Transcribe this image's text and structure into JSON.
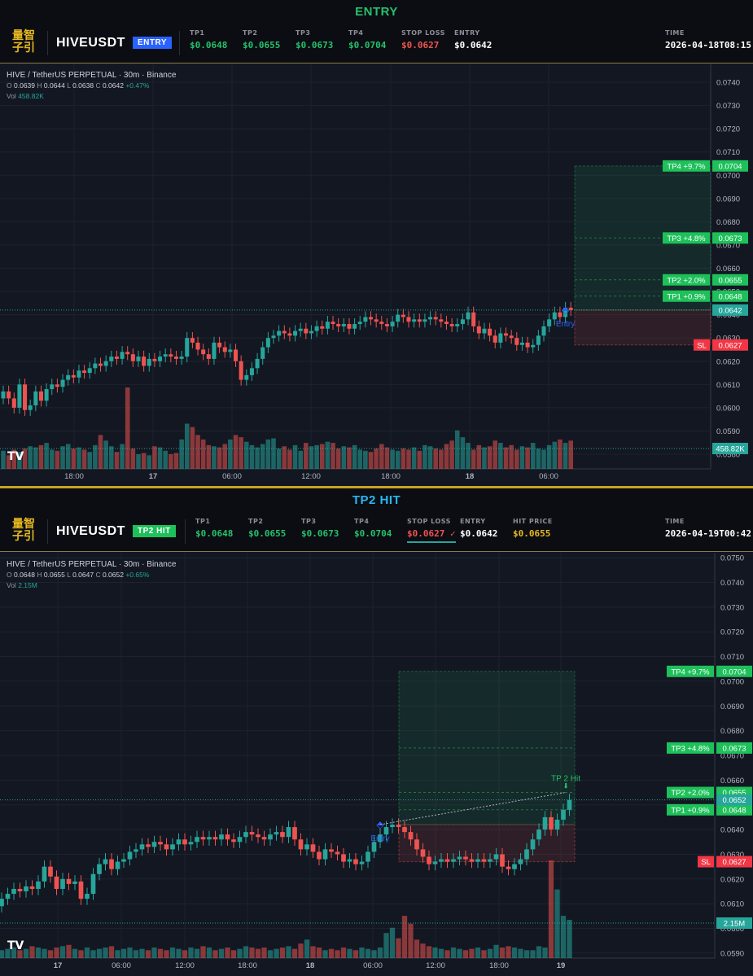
{
  "panels": [
    {
      "banner": "ENTRY",
      "banner_color": "#26c06b",
      "symbol": "HIVEUSDT",
      "badge": "ENTRY",
      "badge_color": "#2962ff",
      "logo": [
        "量智",
        "子引"
      ],
      "fields": [
        {
          "label": "TP1",
          "value": "$0.0648",
          "color": "#26c06b"
        },
        {
          "label": "TP2",
          "value": "$0.0655",
          "color": "#26c06b"
        },
        {
          "label": "TP3",
          "value": "$0.0673",
          "color": "#26c06b"
        },
        {
          "label": "TP4",
          "value": "$0.0704",
          "color": "#26c06b"
        },
        {
          "label": "STOP LOSS",
          "value": "$0.0627",
          "color": "#ef5350"
        },
        {
          "label": "ENTRY",
          "value": "$0.0642",
          "color": "#ffffff"
        }
      ],
      "time_label": "TIME",
      "time_value": "2026-04-18T08:15",
      "legend": {
        "title": "HIVE / TetherUS PERPETUAL · 30m · Binance",
        "o_label": "O",
        "o": "0.0639",
        "h_label": "H",
        "h": "0.0644",
        "l_label": "L",
        "l": "0.0638",
        "c_label": "C",
        "c": "0.0642",
        "chg": "+0.47%",
        "vol_label": "Vol",
        "vol": "458.82K"
      },
      "chart_data": {
        "type": "candlestick",
        "timeframe": "30m",
        "y_ticks": [
          "0.0580",
          "0.0590",
          "0.0600",
          "0.0610",
          "0.0620",
          "0.0630",
          "0.0640",
          "0.0650",
          "0.0660",
          "0.0670",
          "0.0680",
          "0.0690",
          "0.0700",
          "0.0710",
          "0.0720",
          "0.0730",
          "0.0740"
        ],
        "ylim": [
          0.0578,
          0.0746
        ],
        "x_ticks": [
          "18:00",
          "17",
          "06:00",
          "12:00",
          "18:00",
          "18",
          "06:00"
        ],
        "x_tick_bold": [
          false,
          true,
          false,
          false,
          false,
          true,
          false
        ],
        "closes": [
          0.0607,
          0.0604,
          0.06,
          0.061,
          0.0599,
          0.0601,
          0.0607,
          0.0603,
          0.0608,
          0.061,
          0.0609,
          0.0612,
          0.0614,
          0.0613,
          0.0616,
          0.0615,
          0.0617,
          0.0619,
          0.0618,
          0.062,
          0.0622,
          0.0621,
          0.0624,
          0.0623,
          0.062,
          0.0622,
          0.0618,
          0.0621,
          0.062,
          0.0622,
          0.0623,
          0.0622,
          0.0621,
          0.0622,
          0.063,
          0.0628,
          0.0625,
          0.0623,
          0.0621,
          0.0628,
          0.0626,
          0.0624,
          0.0625,
          0.062,
          0.0612,
          0.0614,
          0.0617,
          0.0621,
          0.0626,
          0.063,
          0.0631,
          0.0633,
          0.0632,
          0.0631,
          0.0633,
          0.0634,
          0.0632,
          0.0633,
          0.0635,
          0.0634,
          0.0637,
          0.0636,
          0.0635,
          0.0636,
          0.0634,
          0.0636,
          0.0637,
          0.0639,
          0.0638,
          0.0637,
          0.0636,
          0.0635,
          0.0637,
          0.064,
          0.0639,
          0.0637,
          0.0638,
          0.0637,
          0.0638,
          0.0639,
          0.0638,
          0.0637,
          0.0636,
          0.0635,
          0.0636,
          0.0638,
          0.0641,
          0.0635,
          0.0632,
          0.0634,
          0.0631,
          0.0628,
          0.0632,
          0.0631,
          0.063,
          0.0627,
          0.0628,
          0.0626,
          0.0627,
          0.0631,
          0.0635,
          0.0638,
          0.0641,
          0.0639,
          0.0643,
          0.0642
        ],
        "volumes": [
          160,
          120,
          170,
          150,
          180,
          200,
          190,
          210,
          230,
          170,
          160,
          200,
          220,
          180,
          190,
          170,
          150,
          210,
          300,
          250,
          200,
          150,
          220,
          720,
          180,
          130,
          140,
          120,
          200,
          190,
          160,
          130,
          140,
          260,
          400,
          370,
          300,
          260,
          210,
          200,
          190,
          220,
          260,
          300,
          280,
          240,
          210,
          190,
          220,
          260,
          270,
          180,
          200,
          170,
          210,
          160,
          230,
          200,
          210,
          220,
          240,
          230,
          180,
          200,
          190,
          210,
          170,
          160,
          150,
          180,
          220,
          190,
          170,
          160,
          180,
          170,
          190,
          160,
          210,
          200,
          180,
          170,
          220,
          250,
          340,
          280,
          230,
          170,
          210,
          190,
          200,
          250,
          230,
          190,
          210,
          170,
          200,
          190,
          230,
          180,
          170,
          210,
          240,
          260,
          230,
          250
        ],
        "vol_max": 720,
        "entry_index": 104,
        "levels": [
          {
            "name": "TP4",
            "label": "TP4 +9.7%",
            "value": 0.0704,
            "price": "0.0704"
          },
          {
            "name": "TP3",
            "label": "TP3 +4.8%",
            "value": 0.0673,
            "price": "0.0673"
          },
          {
            "name": "TP2",
            "label": "TP2 +2.0%",
            "value": 0.0655,
            "price": "0.0655"
          },
          {
            "name": "TP1",
            "label": "TP1 +0.9%",
            "value": 0.0648,
            "price": "0.0648"
          },
          {
            "name": "SL",
            "label": "SL",
            "value": 0.0627,
            "price": "0.0627"
          }
        ],
        "entry": {
          "label": "Entry",
          "value": 0.0642
        },
        "last_price": {
          "value": 0.0642,
          "label": "0.0642"
        },
        "vol_label": "458.82K",
        "hit": null
      }
    },
    {
      "banner": "TP2 HIT",
      "banner_color": "#29b6f6",
      "symbol": "HIVEUSDT",
      "badge": "TP2 HIT",
      "badge_color": "#1ec05a",
      "logo": [
        "量智",
        "子引"
      ],
      "fields": [
        {
          "label": "TP1",
          "value": "$0.0648",
          "color": "#26c06b"
        },
        {
          "label": "TP2",
          "value": "$0.0655",
          "color": "#26c06b"
        },
        {
          "label": "TP3",
          "value": "$0.0673",
          "color": "#26c06b"
        },
        {
          "label": "TP4",
          "value": "$0.0704",
          "color": "#26c06b"
        },
        {
          "label": "STOP LOSS",
          "value": "$0.0627 ✓",
          "color": "#ef5350"
        },
        {
          "label": "ENTRY",
          "value": "$0.0642",
          "color": "#ffffff"
        },
        {
          "label": "HIT PRICE",
          "value": "$0.0655",
          "color": "#e8b923"
        }
      ],
      "time_label": "TIME",
      "time_value": "2026-04-19T00:42",
      "legend": {
        "title": "HIVE / TetherUS PERPETUAL · 30m · Binance",
        "o_label": "O",
        "o": "0.0648",
        "h_label": "H",
        "h": "0.0655",
        "l_label": "L",
        "l": "0.0647",
        "c_label": "C",
        "c": "0.0652",
        "chg": "+0.65%",
        "vol_label": "Vol",
        "vol": "2.15M"
      },
      "chart_data": {
        "type": "candlestick",
        "timeframe": "30m",
        "y_ticks": [
          "0.0590",
          "0.0600",
          "0.0610",
          "0.0620",
          "0.0630",
          "0.0640",
          "0.0650",
          "0.0660",
          "0.0670",
          "0.0680",
          "0.0690",
          "0.0700",
          "0.0710",
          "0.0720",
          "0.0730",
          "0.0740",
          "0.0750"
        ],
        "ylim": [
          0.0588,
          0.0752
        ],
        "x_ticks": [
          "17",
          "06:00",
          "12:00",
          "18:00",
          "18",
          "06:00",
          "12:00",
          "18:00",
          "19"
        ],
        "x_tick_bold": [
          true,
          false,
          false,
          false,
          true,
          false,
          false,
          false,
          true
        ],
        "closes": [
          0.0612,
          0.0614,
          0.0616,
          0.0615,
          0.0617,
          0.0616,
          0.0619,
          0.0625,
          0.0621,
          0.0616,
          0.062,
          0.0618,
          0.0619,
          0.0612,
          0.0614,
          0.0622,
          0.0626,
          0.0628,
          0.0624,
          0.0627,
          0.0628,
          0.0631,
          0.0632,
          0.0634,
          0.0633,
          0.0635,
          0.0634,
          0.0632,
          0.0634,
          0.0636,
          0.0634,
          0.0635,
          0.0637,
          0.0636,
          0.0637,
          0.0636,
          0.0638,
          0.0636,
          0.0635,
          0.0637,
          0.0639,
          0.0638,
          0.0637,
          0.0636,
          0.0638,
          0.0639,
          0.0637,
          0.0641,
          0.0636,
          0.0632,
          0.0634,
          0.0631,
          0.0628,
          0.0632,
          0.0631,
          0.063,
          0.0627,
          0.0628,
          0.0626,
          0.0627,
          0.0631,
          0.0635,
          0.0638,
          0.0641,
          0.0642,
          0.0641,
          0.0639,
          0.0636,
          0.0632,
          0.0629,
          0.0626,
          0.0627,
          0.0628,
          0.0627,
          0.0628,
          0.0629,
          0.0628,
          0.0627,
          0.0628,
          0.0627,
          0.0628,
          0.063,
          0.0625,
          0.0624,
          0.0626,
          0.0628,
          0.0632,
          0.0636,
          0.064,
          0.0645,
          0.064,
          0.0644,
          0.0648,
          0.0652
        ],
        "volumes": [
          60,
          70,
          80,
          60,
          70,
          90,
          80,
          70,
          60,
          80,
          90,
          100,
          70,
          60,
          80,
          60,
          70,
          80,
          90,
          60,
          70,
          80,
          60,
          70,
          60,
          80,
          70,
          60,
          80,
          70,
          60,
          80,
          70,
          90,
          80,
          60,
          70,
          80,
          60,
          70,
          90,
          80,
          70,
          80,
          60,
          70,
          80,
          90,
          70,
          110,
          140,
          90,
          80,
          60,
          70,
          60,
          80,
          70,
          60,
          80,
          70,
          60,
          80,
          190,
          230,
          150,
          320,
          260,
          140,
          110,
          90,
          80,
          70,
          60,
          80,
          70,
          60,
          70,
          80,
          60,
          70,
          100,
          80,
          90,
          80,
          70,
          60,
          60,
          90,
          80,
          740,
          520,
          320,
          290
        ],
        "vol_max": 740,
        "entry_index": 62,
        "levels": [
          {
            "name": "TP4",
            "label": "TP4 +9.7%",
            "value": 0.0704,
            "price": "0.0704"
          },
          {
            "name": "TP3",
            "label": "TP3 +4.8%",
            "value": 0.0673,
            "price": "0.0673"
          },
          {
            "name": "TP2",
            "label": "TP2 +2.0%",
            "value": 0.0655,
            "price": "0.0655"
          },
          {
            "name": "TP1",
            "label": "TP1 +0.9%",
            "value": 0.0648,
            "price": "0.0648"
          },
          {
            "name": "SL",
            "label": "SL",
            "value": 0.0627,
            "price": "0.0627"
          }
        ],
        "entry": {
          "label": "Entry",
          "value": 0.0642
        },
        "last_price": {
          "value": 0.0652,
          "label": "0.0652"
        },
        "vol_label": "2.15M",
        "hit": {
          "label": "TP 2 Hit",
          "value": 0.0655
        }
      }
    }
  ]
}
